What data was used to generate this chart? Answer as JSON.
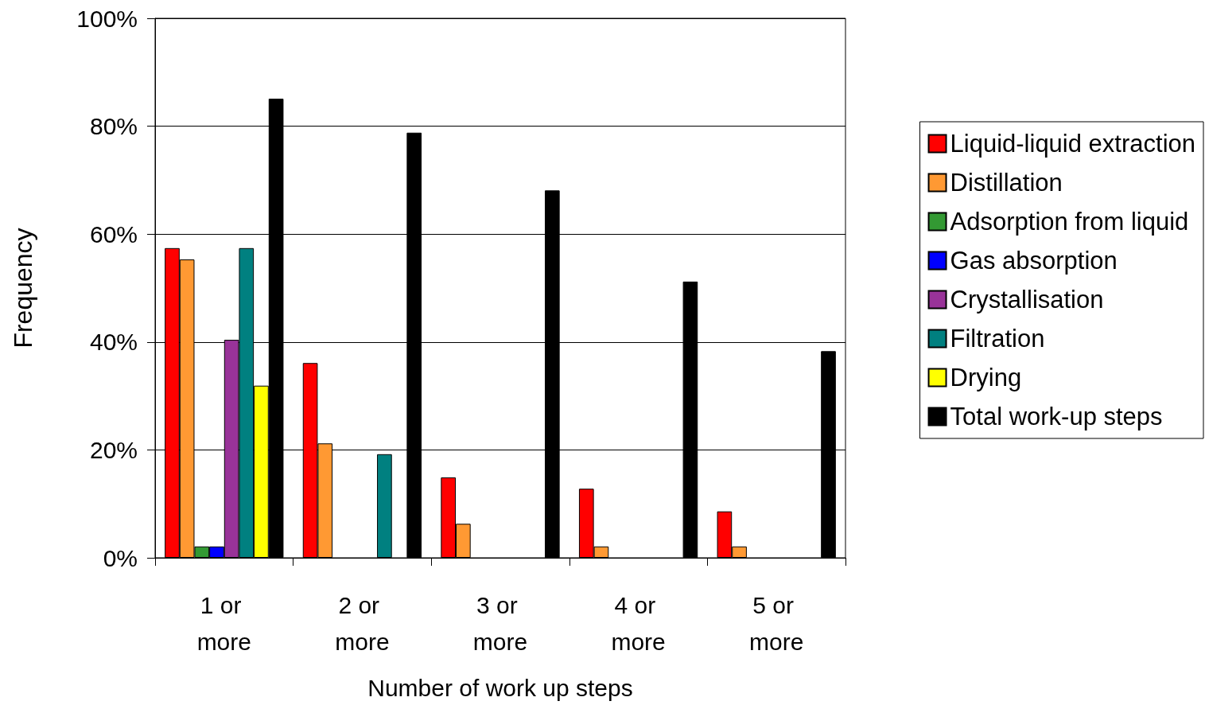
{
  "chart_data": {
    "type": "bar",
    "xlabel": "Number of work up steps",
    "ylabel": "Frequency",
    "categories": [
      "1 or more",
      "2 or more",
      "3 or more",
      "4 or more",
      "5 or more"
    ],
    "series": [
      {
        "name": "Liquid-liquid extraction",
        "color": "#ff0000",
        "values": [
          57.4,
          36.1,
          14.9,
          12.8,
          8.6
        ]
      },
      {
        "name": "Distillation",
        "color": "#ff9933",
        "values": [
          55.3,
          21.2,
          6.3,
          2.1,
          2.1
        ]
      },
      {
        "name": "Adsorption from liquid",
        "color": "#339933",
        "values": [
          2.1,
          null,
          null,
          null,
          null
        ]
      },
      {
        "name": "Gas absorption",
        "color": "#0000ff",
        "values": [
          2.1,
          null,
          null,
          null,
          null
        ]
      },
      {
        "name": "Crystallisation",
        "color": "#993399",
        "values": [
          40.4,
          null,
          null,
          null,
          null
        ]
      },
      {
        "name": "Filtration",
        "color": "#008080",
        "values": [
          57.4,
          19.2,
          null,
          null,
          null
        ]
      },
      {
        "name": "Drying",
        "color": "#ffff00",
        "values": [
          31.9,
          null,
          null,
          null,
          null
        ]
      },
      {
        "name": "Total work-up steps",
        "color": "#000000",
        "values": [
          85.1,
          78.8,
          68.1,
          51.2,
          38.3
        ]
      }
    ],
    "ylim": [
      0,
      100
    ],
    "yticks": [
      {
        "value": 0,
        "label": "0%"
      },
      {
        "value": 20,
        "label": "20%"
      },
      {
        "value": 40,
        "label": "40%"
      },
      {
        "value": 60,
        "label": "60%"
      },
      {
        "value": 80,
        "label": "80%"
      },
      {
        "value": 100,
        "label": "100%"
      }
    ],
    "grid": "y",
    "legend": "right"
  }
}
